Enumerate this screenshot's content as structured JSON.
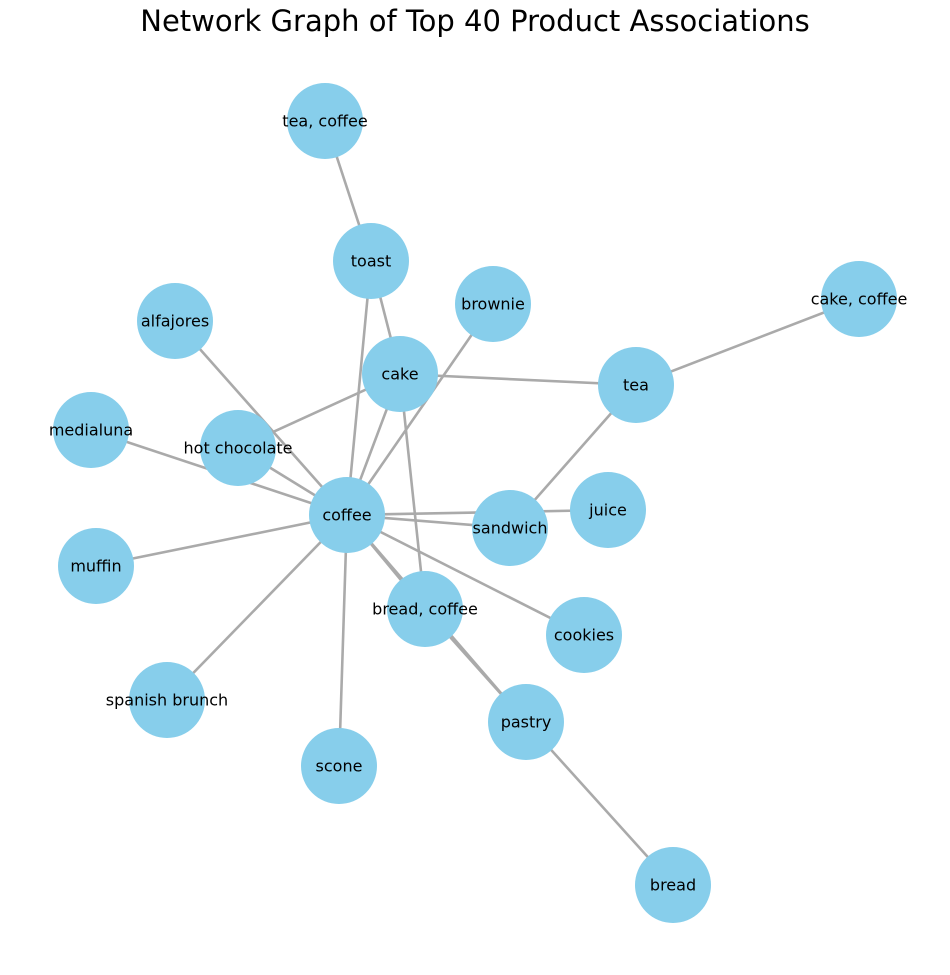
{
  "title": "Network Graph of Top 40 Product Associations",
  "style": {
    "node_color": "#87CEEB",
    "edge_color": "#AAAAAA",
    "label_color": "#000000",
    "background": "#FFFFFF"
  },
  "graph": {
    "nodes": [
      {
        "id": "tea_coffee",
        "label": "tea, coffee"
      },
      {
        "id": "toast",
        "label": "toast"
      },
      {
        "id": "brownie",
        "label": "brownie"
      },
      {
        "id": "cake_coffee",
        "label": "cake, coffee"
      },
      {
        "id": "alfajores",
        "label": "alfajores"
      },
      {
        "id": "cake",
        "label": "cake"
      },
      {
        "id": "tea",
        "label": "tea"
      },
      {
        "id": "medialuna",
        "label": "medialuna"
      },
      {
        "id": "hot_chocolate",
        "label": "hot chocolate"
      },
      {
        "id": "coffee",
        "label": "coffee"
      },
      {
        "id": "juice",
        "label": "juice"
      },
      {
        "id": "sandwich",
        "label": "sandwich"
      },
      {
        "id": "muffin",
        "label": "muffin"
      },
      {
        "id": "bread_coffee",
        "label": "bread, coffee"
      },
      {
        "id": "cookies",
        "label": "cookies"
      },
      {
        "id": "spanish_brunch",
        "label": "spanish brunch"
      },
      {
        "id": "pastry",
        "label": "pastry"
      },
      {
        "id": "scone",
        "label": "scone"
      },
      {
        "id": "bread",
        "label": "bread"
      }
    ],
    "edges": [
      {
        "source": "tea_coffee",
        "target": "toast"
      },
      {
        "source": "toast",
        "target": "coffee"
      },
      {
        "source": "toast",
        "target": "cake"
      },
      {
        "source": "cake_coffee",
        "target": "tea"
      },
      {
        "source": "cake",
        "target": "tea"
      },
      {
        "source": "cake",
        "target": "hot_chocolate"
      },
      {
        "source": "cake",
        "target": "coffee"
      },
      {
        "source": "cake",
        "target": "bread_coffee"
      },
      {
        "source": "brownie",
        "target": "coffee"
      },
      {
        "source": "alfajores",
        "target": "coffee"
      },
      {
        "source": "medialuna",
        "target": "coffee"
      },
      {
        "source": "hot_chocolate",
        "target": "coffee"
      },
      {
        "source": "tea",
        "target": "sandwich"
      },
      {
        "source": "coffee",
        "target": "sandwich"
      },
      {
        "source": "coffee",
        "target": "juice"
      },
      {
        "source": "coffee",
        "target": "muffin"
      },
      {
        "source": "coffee",
        "target": "bread_coffee"
      },
      {
        "source": "coffee",
        "target": "cookies"
      },
      {
        "source": "coffee",
        "target": "spanish_brunch"
      },
      {
        "source": "coffee",
        "target": "scone"
      },
      {
        "source": "bread_coffee",
        "target": "pastry"
      },
      {
        "source": "coffee",
        "target": "pastry"
      },
      {
        "source": "pastry",
        "target": "bread"
      }
    ]
  }
}
